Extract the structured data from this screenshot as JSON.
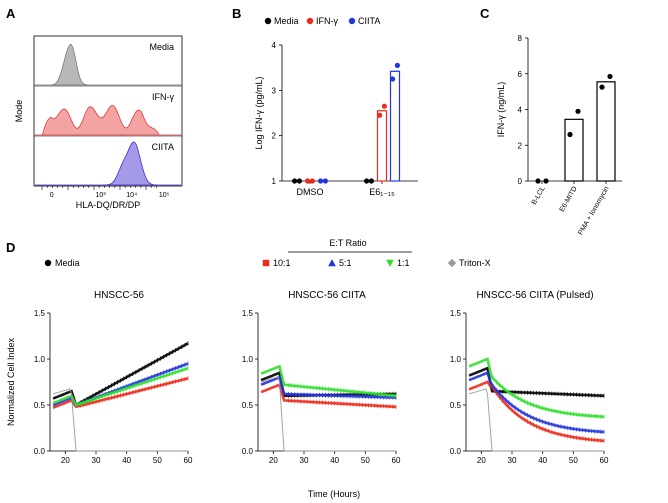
{
  "panels": {
    "a": {
      "letter": "A",
      "ylabel": "Mode",
      "xlabel": "HLA-DQ/DR/DP",
      "histograms": [
        {
          "label": "Media",
          "fill": "#b8b8b8",
          "stroke": "#7a7a7a"
        },
        {
          "label": "IFN-γ",
          "fill": "#f4a3a3",
          "stroke": "#e23a3a"
        },
        {
          "label": "CIITA",
          "fill": "#a59ae8",
          "stroke": "#3a2bd6"
        }
      ],
      "tick_labels": [
        "0",
        "10³",
        "10⁴",
        "10⁵"
      ]
    },
    "b": {
      "letter": "B"
    },
    "c": {
      "letter": "C"
    },
    "d": {
      "letter": "D",
      "ratio_title": "E:T Ratio",
      "xlabel": "Time (Hours)",
      "ylabel": "Normalized Cell Index"
    }
  },
  "colors": {
    "media": "#000000",
    "red": "#ee2a1b",
    "blue": "#2235e0",
    "green": "#2ee02e",
    "triton": "#999999"
  },
  "chart_data": [
    {
      "type": "bar",
      "panel": "B",
      "categories": [
        "DMSO",
        "E6₁₋₁₅"
      ],
      "series": [
        {
          "name": "Media",
          "color": "#000000",
          "values": [
            1.0,
            1.0
          ],
          "points": [
            [
              1.0,
              1.0
            ],
            [
              1.0,
              1.0
            ]
          ]
        },
        {
          "name": "IFN-γ",
          "color": "#ee2a1b",
          "values": [
            1.0,
            2.55
          ],
          "points": [
            [
              1.0,
              1.0
            ],
            [
              2.45,
              2.65
            ]
          ]
        },
        {
          "name": "CIITA",
          "color": "#2235e0",
          "values": [
            1.0,
            3.42
          ],
          "points": [
            [
              1.0,
              1.0
            ],
            [
              3.25,
              3.55
            ]
          ]
        }
      ],
      "ylabel": "Log IFN-γ (pg/mL)",
      "ylim": [
        1,
        4
      ],
      "yticks": [
        "1",
        "2",
        "3",
        "4"
      ],
      "legend": "top"
    },
    {
      "type": "bar",
      "panel": "C",
      "categories": [
        "B-LCL",
        "E6-MITD",
        "PMA + Ionomycin"
      ],
      "values": [
        0,
        3.45,
        5.55
      ],
      "points": [
        [
          0,
          0
        ],
        [
          2.6,
          3.9
        ],
        [
          5.25,
          5.85
        ]
      ],
      "ylabel": "IFN-γ (ng/mL)",
      "ylim": [
        0,
        8
      ],
      "yticks": [
        "0",
        "2",
        "4",
        "6",
        "8"
      ]
    },
    {
      "type": "line",
      "panel": "D",
      "legend": "top",
      "series_legend": [
        {
          "name": "Media",
          "color": "#000000",
          "marker": "circle"
        },
        {
          "name": "10:1",
          "color": "#ee2a1b",
          "marker": "square"
        },
        {
          "name": "5:1",
          "color": "#2235e0",
          "marker": "triangle"
        },
        {
          "name": "1:1",
          "color": "#2ee02e",
          "marker": "triangle-down"
        },
        {
          "name": "Triton-X",
          "color": "#999999",
          "marker": "diamond"
        }
      ],
      "xlim": [
        15,
        60
      ],
      "ylim": [
        0,
        1.5
      ],
      "xticks": [
        "20",
        "30",
        "40",
        "50",
        "60"
      ],
      "yticks": [
        "0.0",
        "0.5",
        "1.0",
        "1.5"
      ],
      "subplots": [
        {
          "title": "HNSCC-56",
          "series": [
            {
              "name": "Media",
              "pre": 0.65,
              "drop": 0.5,
              "end": 1.17
            },
            {
              "name": "10:1",
              "pre": 0.55,
              "drop": 0.48,
              "end": 0.79
            },
            {
              "name": "5:1",
              "pre": 0.58,
              "drop": 0.5,
              "end": 0.95
            },
            {
              "name": "1:1",
              "pre": 0.6,
              "drop": 0.5,
              "end": 0.9
            },
            {
              "name": "Triton-X",
              "pre": 0.62,
              "drop": 0.0,
              "end": 0.0
            }
          ]
        },
        {
          "title": "HNSCC-56 CIITA",
          "series": [
            {
              "name": "Media",
              "pre": 0.85,
              "drop": 0.6,
              "end": 0.62
            },
            {
              "name": "10:1",
              "pre": 0.72,
              "drop": 0.55,
              "end": 0.48
            },
            {
              "name": "5:1",
              "pre": 0.8,
              "drop": 0.62,
              "end": 0.58
            },
            {
              "name": "1:1",
              "pre": 0.92,
              "drop": 0.72,
              "end": 0.6
            },
            {
              "name": "Triton-X",
              "pre": 0.75,
              "drop": 0.0,
              "end": 0.0
            }
          ]
        },
        {
          "title": "HNSCC-56 CIITA (Pulsed)",
          "series": [
            {
              "name": "Media",
              "pre": 0.9,
              "drop": 0.65,
              "end": 0.6
            },
            {
              "name": "10:1",
              "pre": 0.75,
              "drop": 0.68,
              "end": 0.08
            },
            {
              "name": "5:1",
              "pre": 0.85,
              "drop": 0.7,
              "end": 0.18
            },
            {
              "name": "1:1",
              "pre": 1.0,
              "drop": 0.78,
              "end": 0.35
            },
            {
              "name": "Triton-X",
              "pre": 0.62,
              "drop": 0.0,
              "end": 0.0
            }
          ]
        }
      ]
    }
  ]
}
